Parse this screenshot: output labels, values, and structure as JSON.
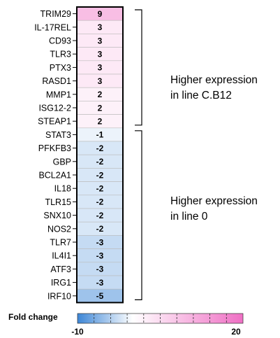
{
  "chart_data": {
    "type": "heatmap",
    "genes": [
      "TRIM29",
      "IL-17REL",
      "CD93",
      "TLR3",
      "PTX3",
      "RASD1",
      "MMP1",
      "ISG12-2",
      "STEAP1",
      "STAT3",
      "PFKFB3",
      "GBP",
      "BCL2A1",
      "IL18",
      "TLR15",
      "SNX10",
      "NOS2",
      "TLR7",
      "IL4I1",
      "ATF3",
      "IRG1",
      "IRF10"
    ],
    "values": [
      9,
      3,
      3,
      3,
      3,
      3,
      2,
      2,
      2,
      -1,
      -2,
      -2,
      -2,
      -2,
      -2,
      -2,
      -2,
      -3,
      -3,
      -3,
      -3,
      -5
    ],
    "color_scale": {
      "min": -10,
      "max": 20,
      "low_color": "#3d86d6",
      "mid_color": "#ffffff",
      "high_color": "#ef6fc4"
    },
    "groups": [
      {
        "label_line1": "Higher expression",
        "label_line2": "in line C.B12",
        "from": 0,
        "to": 8
      },
      {
        "label_line1": "Higher expression",
        "label_line2": "in line 0",
        "from": 9,
        "to": 21
      }
    ],
    "legend": {
      "title": "Fold change",
      "tick_min": "-10",
      "tick_max": "20"
    }
  }
}
